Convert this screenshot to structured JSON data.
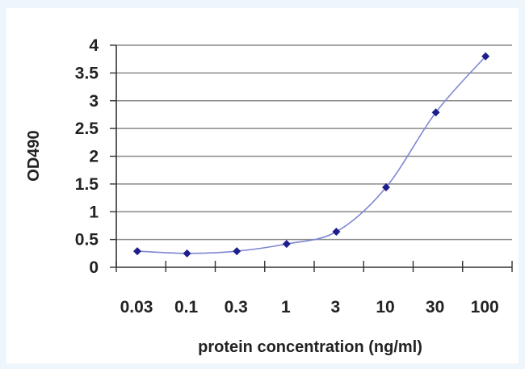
{
  "colors": {
    "page_background": "#eef6fb",
    "plot_background": "#ffffff",
    "gridline": "#8a8a8a",
    "series": "#1e1e8c",
    "line": "#7f86d2"
  },
  "chart_data": {
    "type": "line",
    "title": "",
    "xlabel": "protein concentration (ng/ml)",
    "ylabel": "OD490",
    "x_scale": "log",
    "categories": [
      "0.03",
      "0.1",
      "0.3",
      "1",
      "3",
      "10",
      "30",
      "100"
    ],
    "x": [
      0.03,
      0.1,
      0.3,
      1,
      3,
      10,
      30,
      100
    ],
    "yticks": [
      "0",
      "0.5",
      "1",
      "1.5",
      "2",
      "2.5",
      "3",
      "3.5",
      "4"
    ],
    "ylim": [
      0,
      4
    ],
    "grid": "horizontal",
    "legend": "none",
    "series": [
      {
        "values": [
          0.29,
          0.25,
          0.29,
          0.42,
          0.64,
          1.44,
          2.79,
          3.8
        ]
      }
    ]
  }
}
